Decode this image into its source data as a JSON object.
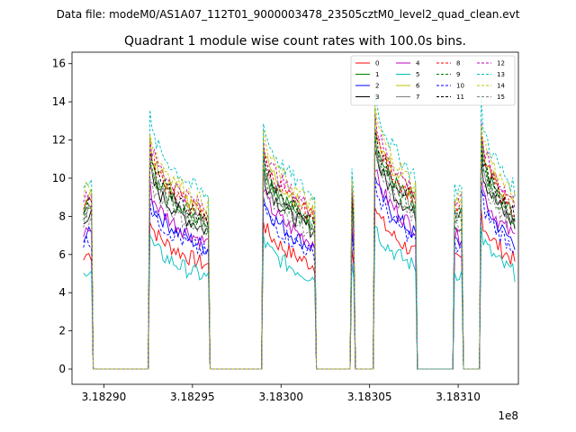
{
  "figure": {
    "suptitle": "Data file: modeM0/AS1A07_112T01_9000003478_23505cztM0_level2_quad_clean.evt",
    "offset_text": "1e8"
  },
  "chart_data": {
    "type": "line",
    "title": "Quadrant 1 module wise count rates with 100.0s bins.",
    "xlabel": "",
    "ylabel": "",
    "xlim": [
      3.182882,
      3.183134
    ],
    "ylim": [
      -0.8,
      16.6
    ],
    "x_offset": "1e8",
    "xticks": [
      3.1829,
      3.18295,
      3.183,
      3.18305,
      3.1831
    ],
    "xtick_labels": [
      "3.18290",
      "3.18295",
      "3.18300",
      "3.18305",
      "3.18310"
    ],
    "yticks": [
      0,
      2,
      4,
      6,
      8,
      10,
      12,
      14,
      16
    ],
    "ytick_labels": [
      "0",
      "2",
      "4",
      "6",
      "8",
      "10",
      "12",
      "14",
      "16"
    ],
    "legend": {
      "placement": "upper right",
      "ncol": 4
    },
    "series": [
      {
        "name": "0",
        "color": "#ff0000",
        "style": "solid",
        "level": 6.0
      },
      {
        "name": "1",
        "color": "#008000",
        "style": "solid",
        "level": 8.5
      },
      {
        "name": "2",
        "color": "#0000ff",
        "style": "solid",
        "level": 7.0
      },
      {
        "name": "3",
        "color": "#000000",
        "style": "solid",
        "level": 8.0
      },
      {
        "name": "4",
        "color": "#bf00bf",
        "style": "solid",
        "level": 7.3
      },
      {
        "name": "5",
        "color": "#00bfbf",
        "style": "solid",
        "level": 5.3
      },
      {
        "name": "6",
        "color": "#bfbf00",
        "style": "solid",
        "level": 9.0
      },
      {
        "name": "7",
        "color": "#808080",
        "style": "solid",
        "level": 8.3
      },
      {
        "name": "8",
        "color": "#ff0000",
        "style": "dashed",
        "level": 8.8
      },
      {
        "name": "9",
        "color": "#008000",
        "style": "dashed",
        "level": 8.2
      },
      {
        "name": "10",
        "color": "#0000ff",
        "style": "dashed",
        "level": 6.7
      },
      {
        "name": "11",
        "color": "#000000",
        "style": "dashed",
        "level": 8.6
      },
      {
        "name": "12",
        "color": "#bf00bf",
        "style": "dashed",
        "level": 9.2
      },
      {
        "name": "13",
        "color": "#00bfbf",
        "style": "dashed",
        "level": 10.0
      },
      {
        "name": "14",
        "color": "#bfbf00",
        "style": "dashed",
        "level": 9.5
      },
      {
        "name": "15",
        "color": "#808080",
        "style": "dashed",
        "level": 7.8
      }
    ],
    "segments": [
      {
        "start": 3.18289,
        "end": 3.182893,
        "trend": "flat"
      },
      {
        "start": 3.182926,
        "end": 3.182959,
        "trend": "decay"
      },
      {
        "start": 3.18299,
        "end": 3.183019,
        "trend": "decay"
      },
      {
        "start": 3.18304,
        "end": 3.183041,
        "trend": "spike"
      },
      {
        "start": 3.183053,
        "end": 3.183076,
        "trend": "decay"
      },
      {
        "start": 3.183098,
        "end": 3.183102,
        "trend": "flat"
      },
      {
        "start": 3.183113,
        "end": 3.183132,
        "trend": "decay"
      }
    ],
    "gap_level": 0
  }
}
